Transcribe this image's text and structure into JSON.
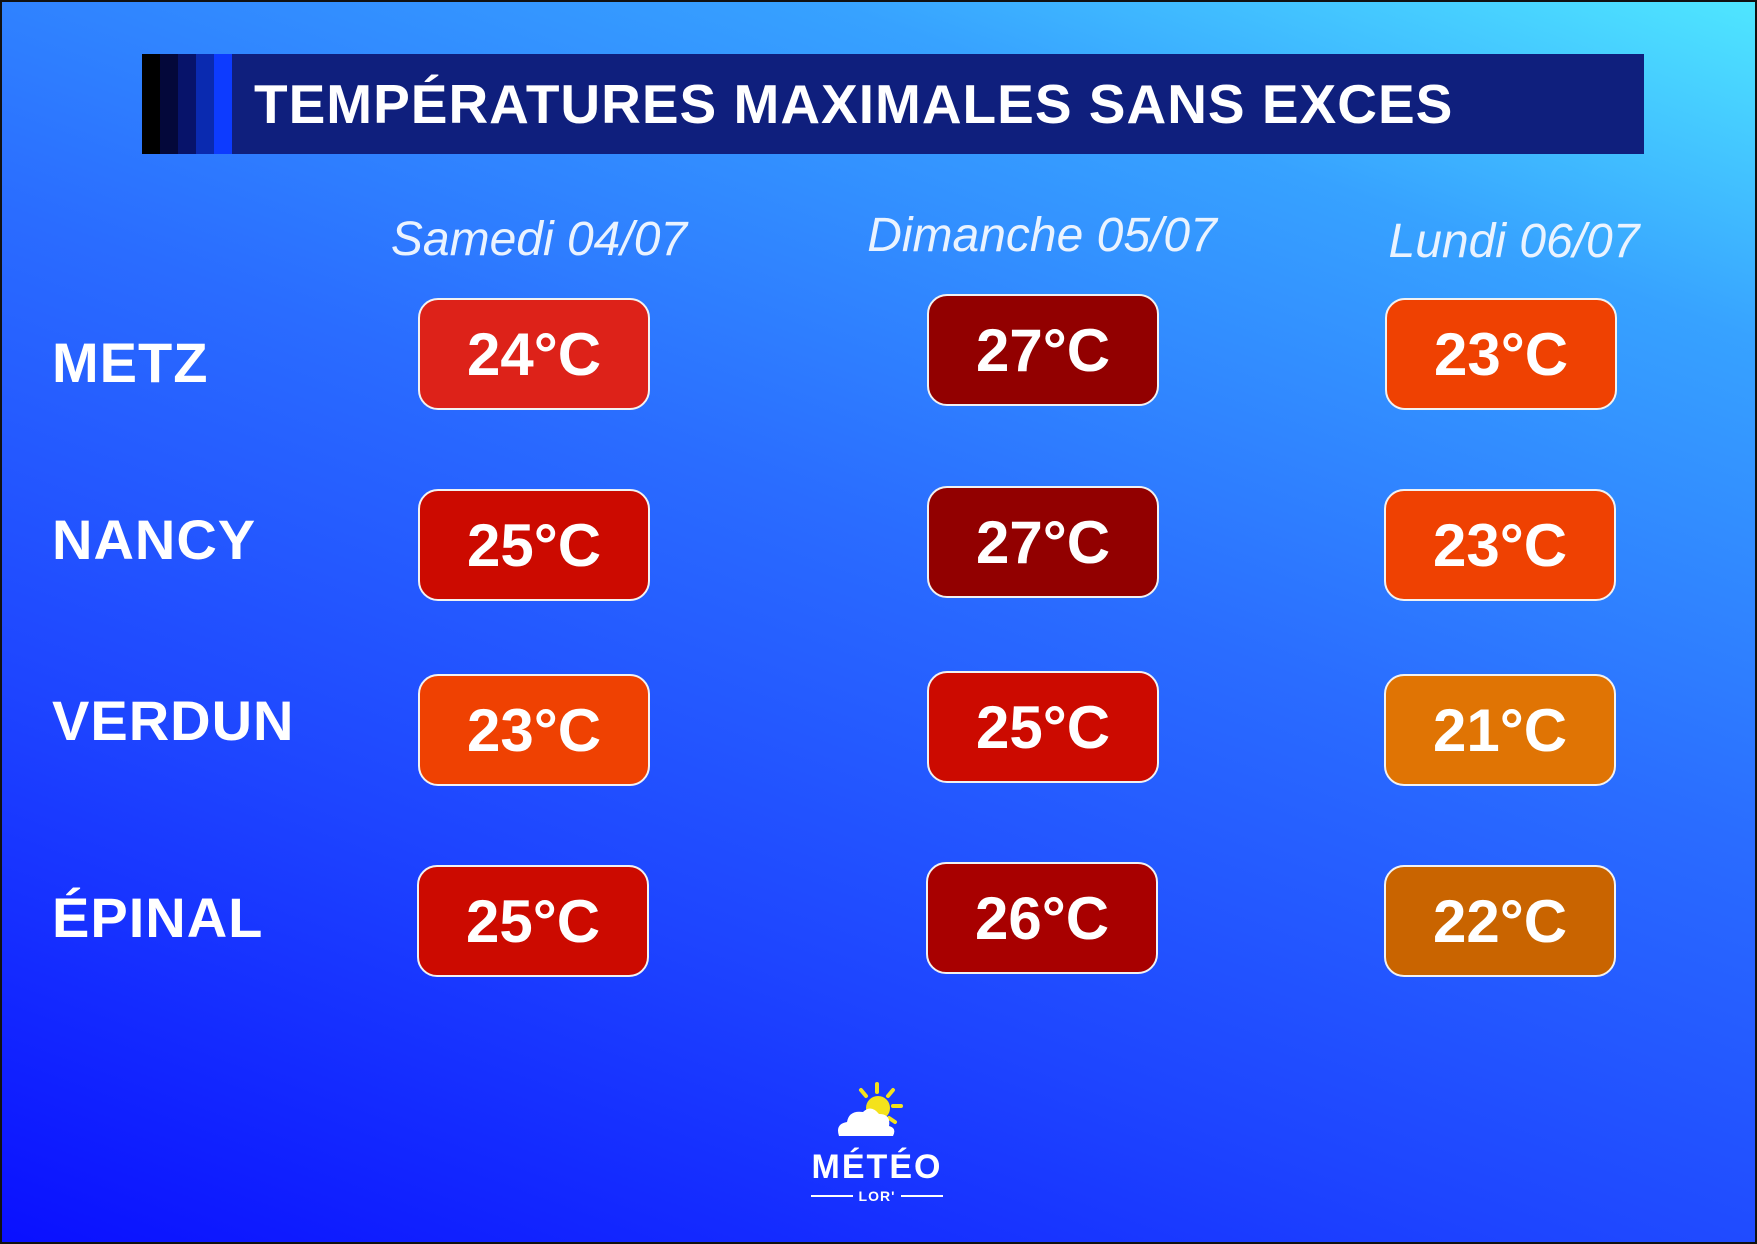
{
  "title": "TEMPÉRATURES MAXIMALES SANS EXCES",
  "days": [
    {
      "label": "Samedi 04/07"
    },
    {
      "label": "Dimanche 05/07"
    },
    {
      "label": "Lundi 06/07"
    }
  ],
  "cities": [
    {
      "name": "METZ",
      "temps": [
        {
          "value": "24°C",
          "color": "#dd2219"
        },
        {
          "value": "27°C",
          "color": "#920000"
        },
        {
          "value": "23°C",
          "color": "#ef4102"
        }
      ]
    },
    {
      "name": "NANCY",
      "temps": [
        {
          "value": "25°C",
          "color": "#cc0a00"
        },
        {
          "value": "27°C",
          "color": "#920000"
        },
        {
          "value": "23°C",
          "color": "#ef4102"
        }
      ]
    },
    {
      "name": "VERDUN",
      "temps": [
        {
          "value": "23°C",
          "color": "#ef4102"
        },
        {
          "value": "25°C",
          "color": "#cc0a00"
        },
        {
          "value": "21°C",
          "color": "#e07404"
        }
      ]
    },
    {
      "name": "ÉPINAL",
      "temps": [
        {
          "value": "25°C",
          "color": "#cc0a00"
        },
        {
          "value": "26°C",
          "color": "#a80000"
        },
        {
          "value": "22°C",
          "color": "#c96400"
        }
      ]
    }
  ],
  "logo": {
    "word": "MÉTÉO",
    "sub": "LOR'"
  },
  "colors": {
    "title_bar": "#0f1f7d",
    "title_stripes": [
      "#000000",
      "#04083a",
      "#07136a",
      "#0a2ab0",
      "#0d3bff"
    ]
  }
}
